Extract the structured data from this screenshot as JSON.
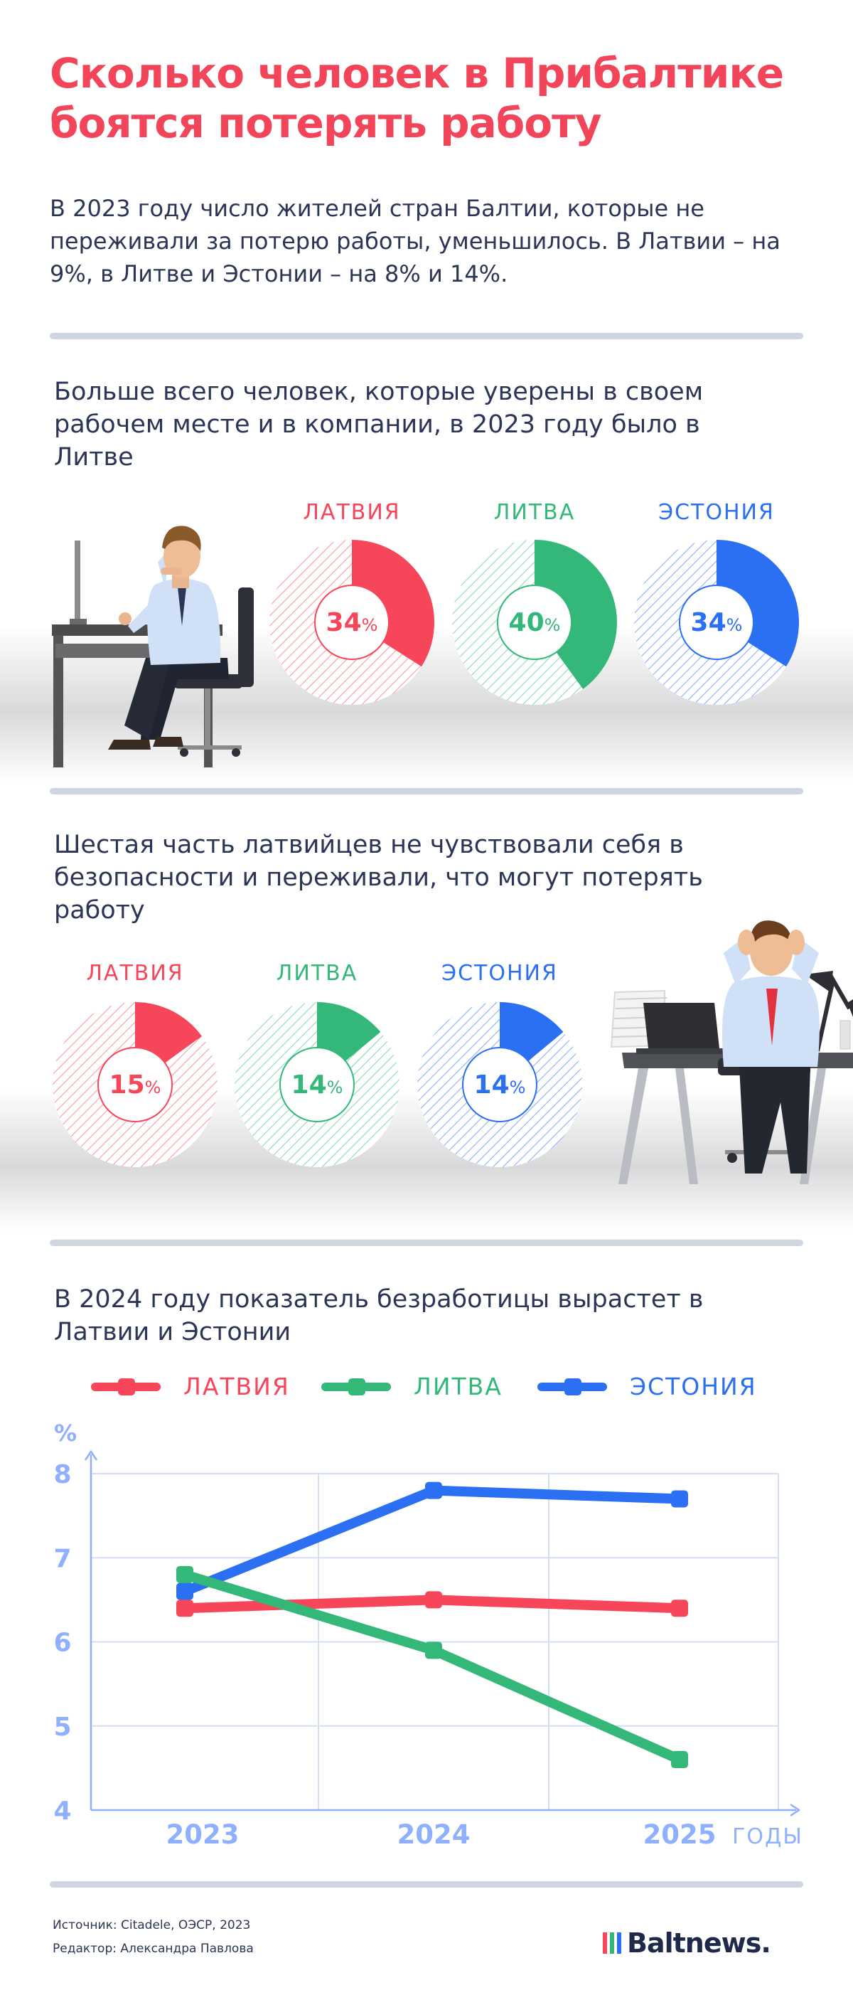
{
  "title": "Сколько человек в Прибалтике боятся потерять работу",
  "lead": "В 2023 году число жителей стран Балтии, которые не переживали за потерю работы, уменьшилось. В Латвии – на 9%, в Литве и Эстонии – на 8% и 14%.",
  "section1": {
    "text": "Больше всего человек, которые уверены в своем рабочем месте и в компании, в 2023 году было в Литве"
  },
  "section2": {
    "text": "Шестая часть латвийцев не чувствовали себя в безопасности и переживали, что могут потерять работу"
  },
  "section3": {
    "text": "В 2024 году показатель безработицы вырастет в Латвии и Эстонии"
  },
  "colors": {
    "latvia": "#f7455a",
    "lithuania": "#33b87a",
    "estonia": "#2b6ff2",
    "axis": "#8fb0ff",
    "grid": "#d3def5"
  },
  "footer": {
    "source": "Источник: Citadele, ОЭСР, 2023",
    "editor": "Редактор: Александра Павлова",
    "logo": "Baltnews."
  },
  "chart_data": [
    {
      "type": "pie",
      "categories": [
        "ЛАТВИЯ",
        "ЛИТВА",
        "ЭСТОНИЯ"
      ],
      "values": [
        34,
        40,
        34
      ],
      "unit": "%"
    },
    {
      "type": "pie",
      "categories": [
        "ЛАТВИЯ",
        "ЛИТВА",
        "ЭСТОНИЯ"
      ],
      "values": [
        15,
        14,
        14
      ],
      "unit": "%"
    },
    {
      "type": "line",
      "x": [
        "2023",
        "2024",
        "2025"
      ],
      "series": [
        {
          "name": "ЛАТВИЯ",
          "values": [
            6.4,
            6.5,
            6.4
          ]
        },
        {
          "name": "ЛИТВА",
          "values": [
            6.8,
            5.9,
            4.6
          ]
        },
        {
          "name": "ЭСТОНИЯ",
          "values": [
            6.6,
            7.8,
            7.7
          ]
        }
      ],
      "yticks": [
        "4",
        "5",
        "6",
        "7",
        "8"
      ],
      "ylim": [
        4,
        8
      ],
      "ylabel": "%",
      "xlabel": "ГОДЫ",
      "grid": true,
      "legend": "top"
    }
  ]
}
